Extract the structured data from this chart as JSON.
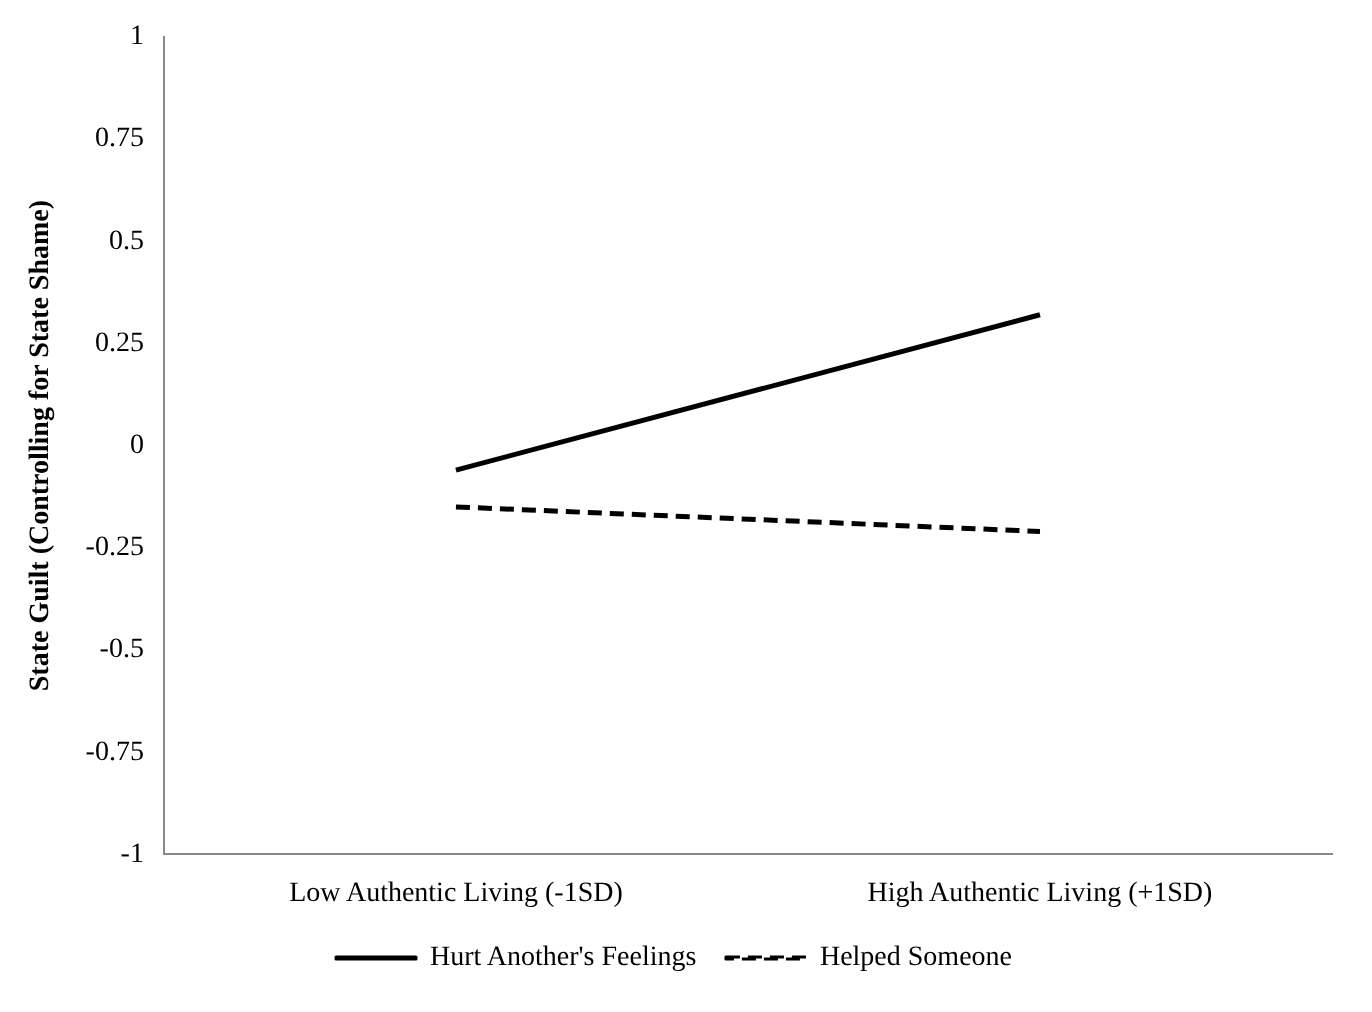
{
  "chart_data": {
    "type": "line",
    "ylabel": "State Guilt (Controlling for State Shame)",
    "categories": [
      "Low Authentic Living (-1SD)",
      "High Authentic Living (+1SD)"
    ],
    "series": [
      {
        "name": "Hurt Another's Feelings",
        "color": "#000000",
        "values": [
          -0.06,
          0.32
        ],
        "line_style": "solid"
      },
      {
        "name": "Helped Someone",
        "color": "#000000",
        "values": [
          -0.15,
          -0.21
        ],
        "line_style": "dashed"
      }
    ],
    "ylim": [
      -1,
      1
    ],
    "yticks": [
      -1,
      -0.75,
      -0.5,
      -0.25,
      0,
      0.25,
      0.5,
      0.75,
      1
    ],
    "grid": false,
    "legend": "bottom",
    "marker": "none"
  }
}
